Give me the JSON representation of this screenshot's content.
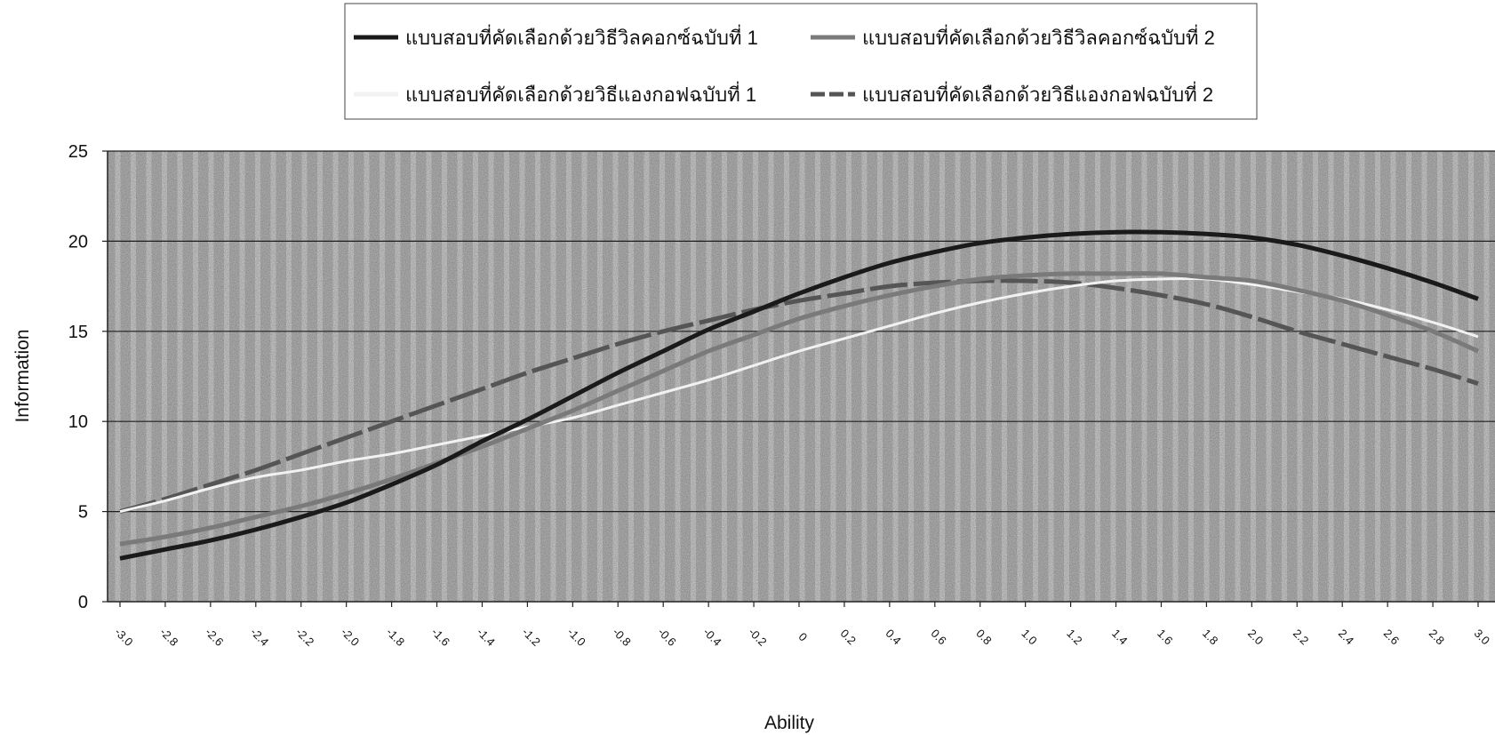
{
  "chart_data": {
    "type": "line",
    "xlabel": "Ability",
    "ylabel": "Information",
    "ylim": [
      0,
      25
    ],
    "xlim": [
      -3.0,
      3.0
    ],
    "grid": "horizontal lines at y ticks; textured gray plot area with light vertical stripes",
    "legend_position": "top",
    "x_tick_labels": [
      "-3.0",
      "-2.8",
      "-2.6",
      "-2.4",
      "-2.2",
      "-2.0",
      "-1.8",
      "-1.6",
      "-1.4",
      "-1.2",
      "-1.0",
      "-0.8",
      "-0.6",
      "-0.4",
      "-0.2",
      "0",
      "0.2",
      "0.4",
      "0.6",
      "0.8",
      "1.0",
      "1.2",
      "1.4",
      "1.6",
      "1.8",
      "2.0",
      "2.2",
      "2.4",
      "2.6",
      "2.8",
      "3.0"
    ],
    "y_tick_labels": [
      "0",
      "5",
      "10",
      "15",
      "20",
      "25"
    ],
    "x": [
      -3.0,
      -2.8,
      -2.6,
      -2.4,
      -2.2,
      -2.0,
      -1.8,
      -1.6,
      -1.4,
      -1.2,
      -1.0,
      -0.8,
      -0.6,
      -0.4,
      -0.2,
      0.0,
      0.2,
      0.4,
      0.6,
      0.8,
      1.0,
      1.2,
      1.4,
      1.6,
      1.8,
      2.0,
      2.2,
      2.4,
      2.6,
      2.8,
      3.0
    ],
    "series": [
      {
        "name": "แบบสอบที่คัดเลือกด้วยวิธีวิลคอกซ์ฉบับที่ 1",
        "color": "#1a1a1a",
        "style": "solid",
        "values": [
          2.4,
          2.9,
          3.4,
          4.0,
          4.7,
          5.5,
          6.5,
          7.6,
          8.9,
          10.1,
          11.4,
          12.7,
          13.9,
          15.1,
          16.1,
          17.1,
          18.0,
          18.8,
          19.4,
          19.9,
          20.2,
          20.4,
          20.5,
          20.5,
          20.4,
          20.2,
          19.8,
          19.2,
          18.5,
          17.7,
          16.8
        ]
      },
      {
        "name": "แบบสอบที่คัดเลือกด้วยวิธีวิลคอกซ์ฉบับที่ 2",
        "color": "#7a7a7a",
        "style": "solid",
        "values": [
          3.2,
          3.6,
          4.1,
          4.7,
          5.3,
          6.0,
          6.8,
          7.7,
          8.6,
          9.6,
          10.6,
          11.7,
          12.8,
          13.9,
          14.8,
          15.7,
          16.4,
          17.0,
          17.5,
          17.9,
          18.1,
          18.2,
          18.2,
          18.2,
          18.0,
          17.8,
          17.3,
          16.7,
          15.9,
          15.0,
          13.9
        ]
      },
      {
        "name": "แบบสอบที่คัดเลือกด้วยวิธีแองกอฟฉบับที่ 1",
        "color": "#f2f2f2",
        "style": "solid",
        "values": [
          5.0,
          5.6,
          6.3,
          6.9,
          7.3,
          7.8,
          8.2,
          8.7,
          9.2,
          9.7,
          10.2,
          10.9,
          11.6,
          12.3,
          13.1,
          13.9,
          14.6,
          15.3,
          16.0,
          16.6,
          17.1,
          17.5,
          17.8,
          17.9,
          17.9,
          17.6,
          17.2,
          16.8,
          16.2,
          15.5,
          14.7
        ]
      },
      {
        "name": "แบบสอบที่คัดเลือกด้วยวิธีแองกอฟฉบับที่ 2",
        "color": "#555555",
        "style": "dashed",
        "values": [
          5.0,
          5.7,
          6.5,
          7.3,
          8.2,
          9.1,
          10.0,
          10.9,
          11.8,
          12.7,
          13.5,
          14.3,
          15.0,
          15.6,
          16.2,
          16.7,
          17.1,
          17.5,
          17.7,
          17.8,
          17.8,
          17.7,
          17.4,
          17.0,
          16.5,
          15.8,
          15.0,
          14.3,
          13.6,
          12.9,
          12.1
        ]
      }
    ]
  }
}
